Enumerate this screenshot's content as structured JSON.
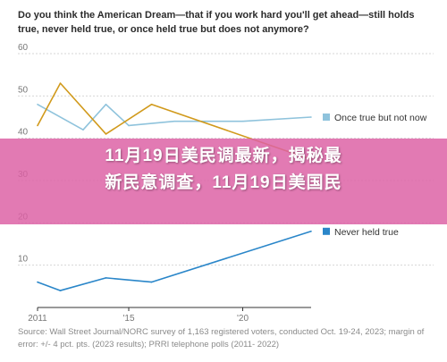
{
  "question": "Do you think the American Dream—that if you work hard you'll get ahead—still holds true, never held true, or once held true but does not anymore?",
  "overlay": {
    "line1": "11月19日美民调最新，揭秘最",
    "line2": "新民意调查，11月19日美国民"
  },
  "source": {
    "line1": "Source: Wall Street Journal/NORC survey of 1,163 registered voters, conducted Oct. 19-24, 2023; margin of",
    "line2": "error: +/- 4 pct. pts. (2023 results); PRRI telephone polls (2011- 2022)"
  },
  "chart_data": {
    "type": "line",
    "title": "Do you think the American Dream—that if you work hard you'll get ahead—still holds true, never held true, or once held true but does not anymore?",
    "xlabel": "",
    "ylabel": "",
    "xlim": [
      2011,
      2023
    ],
    "ylim": [
      0,
      60
    ],
    "y_ticks": [
      10,
      20,
      30,
      40,
      50,
      60
    ],
    "x_ticks": [
      2011,
      2015,
      2020
    ],
    "x_tick_labels": [
      "2011",
      "'15",
      "'20"
    ],
    "grid": true,
    "legend": "inline-right",
    "series": [
      {
        "name": "Once true but not now",
        "color": "#8fc3dc",
        "points": [
          [
            2011,
            48
          ],
          [
            2013,
            42
          ],
          [
            2014,
            48
          ],
          [
            2015,
            43
          ],
          [
            2017,
            44
          ],
          [
            2020,
            44
          ],
          [
            2023,
            45
          ]
        ]
      },
      {
        "name": "",
        "color": "#d19a1c",
        "points": [
          [
            2011,
            43
          ],
          [
            2012,
            53
          ],
          [
            2014,
            41
          ],
          [
            2016,
            48
          ],
          [
            2023,
            35
          ]
        ]
      },
      {
        "name": "Never held true",
        "color": "#2a86c9",
        "points": [
          [
            2011,
            6
          ],
          [
            2012,
            4
          ],
          [
            2014,
            7
          ],
          [
            2016,
            6
          ],
          [
            2023,
            18
          ]
        ]
      }
    ]
  }
}
